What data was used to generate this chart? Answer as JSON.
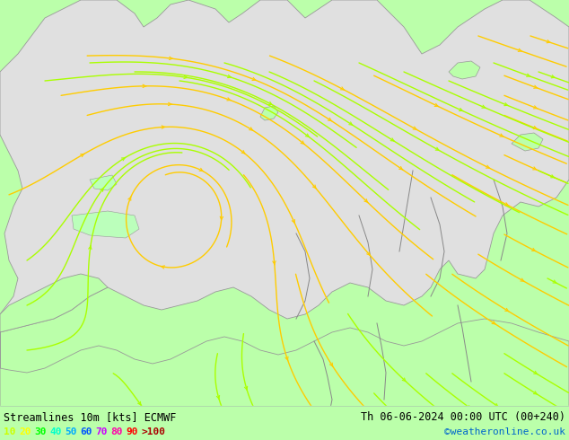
{
  "title_left": "Streamlines 10m [kts] ECMWF",
  "title_right": "Th 06-06-2024 00:00 UTC (00+240)",
  "credit": "©weatheronline.co.uk",
  "legend_values": [
    "10",
    "20",
    "30",
    "40",
    "50",
    "60",
    "70",
    "80",
    "90",
    ">100"
  ],
  "legend_colors": [
    "#ccff00",
    "#ffff00",
    "#00ff00",
    "#00ffcc",
    "#00aaff",
    "#0055ff",
    "#cc00ff",
    "#ff00aa",
    "#ff0000",
    "#aa0000"
  ],
  "bg_color": "#bbffaa",
  "ocean_color": "#e0e0e0",
  "border_color": "#999999",
  "streamline_yellow": "#ffcc00",
  "streamline_green": "#aaff00",
  "figsize": [
    6.34,
    4.9
  ],
  "dpi": 100
}
